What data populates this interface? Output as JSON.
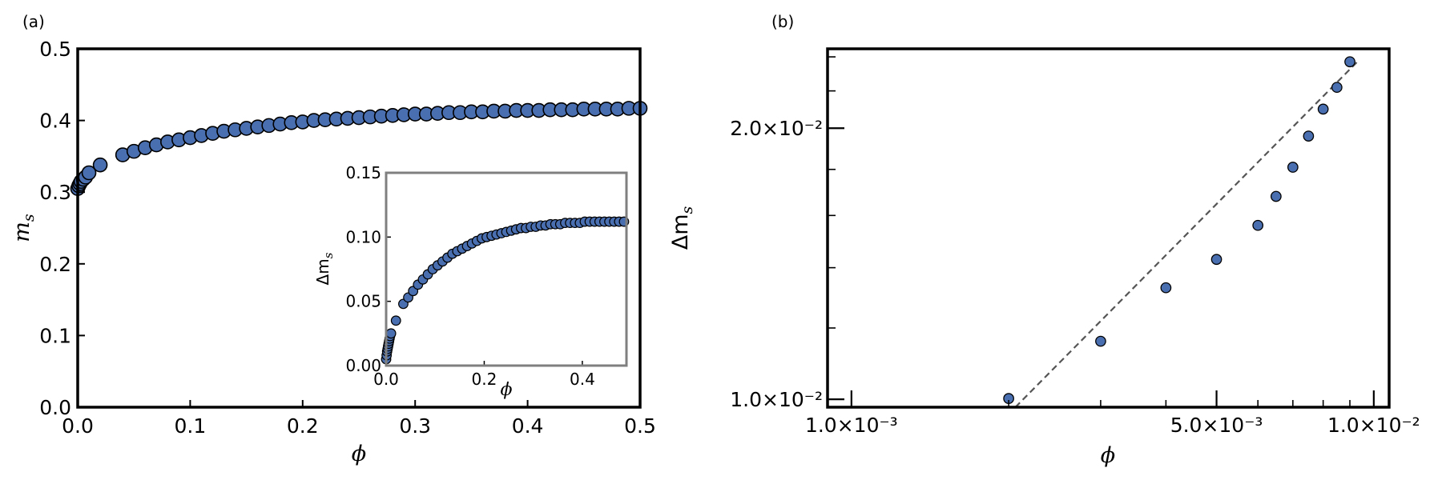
{
  "style": {
    "marker_fill": "#4a6fb0",
    "marker_edge": "#000000",
    "fit_line": "#555555",
    "inset_frame": "#7f7f7f"
  },
  "panel_a": {
    "label": "(a)",
    "xlabel": "ϕ",
    "ylabel": "m",
    "ylabel_sub": "s"
  },
  "panel_b": {
    "label": "(b)",
    "xlabel": "ϕ",
    "ylabel": "Δm",
    "ylabel_sub": "s"
  },
  "chart_data": [
    {
      "id": "main",
      "type": "scatter",
      "title": "",
      "xlabel": "ϕ",
      "ylabel": "m_s",
      "xlim": [
        0.0,
        0.5
      ],
      "ylim": [
        0.0,
        0.5
      ],
      "xticks": [
        0.0,
        0.1,
        0.2,
        0.3,
        0.4,
        0.5
      ],
      "xtick_labels": [
        "0.0",
        "0.1",
        "0.2",
        "0.3",
        "0.4",
        "0.5"
      ],
      "yticks": [
        0.0,
        0.1,
        0.2,
        0.3,
        0.4,
        0.5
      ],
      "ytick_labels": [
        "0.0",
        "0.1",
        "0.2",
        "0.3",
        "0.4",
        "0.5"
      ],
      "series": [
        {
          "name": "m_s",
          "x": [
            0.0,
            0.001,
            0.002,
            0.003,
            0.005,
            0.007,
            0.01,
            0.02,
            0.04,
            0.05,
            0.06,
            0.07,
            0.08,
            0.09,
            0.1,
            0.11,
            0.12,
            0.13,
            0.14,
            0.15,
            0.16,
            0.17,
            0.18,
            0.19,
            0.2,
            0.21,
            0.22,
            0.23,
            0.24,
            0.25,
            0.26,
            0.27,
            0.28,
            0.29,
            0.3,
            0.31,
            0.32,
            0.33,
            0.34,
            0.35,
            0.36,
            0.37,
            0.38,
            0.39,
            0.4,
            0.41,
            0.42,
            0.43,
            0.44,
            0.45,
            0.46,
            0.47,
            0.48,
            0.49,
            0.5
          ],
          "y": [
            0.305,
            0.309,
            0.312,
            0.315,
            0.318,
            0.321,
            0.327,
            0.338,
            0.352,
            0.357,
            0.362,
            0.366,
            0.37,
            0.373,
            0.376,
            0.379,
            0.382,
            0.385,
            0.387,
            0.389,
            0.391,
            0.393,
            0.395,
            0.397,
            0.398,
            0.4,
            0.401,
            0.402,
            0.403,
            0.404,
            0.405,
            0.406,
            0.407,
            0.408,
            0.409,
            0.409,
            0.41,
            0.411,
            0.411,
            0.412,
            0.412,
            0.413,
            0.413,
            0.414,
            0.414,
            0.414,
            0.415,
            0.415,
            0.415,
            0.416,
            0.416,
            0.416,
            0.416,
            0.417,
            0.417
          ]
        }
      ]
    },
    {
      "id": "inset",
      "type": "scatter",
      "title": "",
      "xlabel": "ϕ",
      "ylabel": "Δm_s",
      "xlim": [
        0.0,
        0.49
      ],
      "ylim": [
        0.0,
        0.15
      ],
      "xticks": [
        0.0,
        0.2,
        0.4
      ],
      "xtick_labels": [
        "0.0",
        "0.2",
        "0.4"
      ],
      "yticks": [
        0.0,
        0.05,
        0.1,
        0.15
      ],
      "ytick_labels": [
        "0.00",
        "0.05",
        "0.10",
        "0.15"
      ],
      "series": [
        {
          "name": "Δm_s",
          "x": [
            0.0,
            0.001,
            0.002,
            0.003,
            0.004,
            0.005,
            0.006,
            0.007,
            0.008,
            0.01,
            0.02,
            0.035,
            0.045,
            0.055,
            0.065,
            0.075,
            0.085,
            0.095,
            0.105,
            0.115,
            0.125,
            0.135,
            0.145,
            0.155,
            0.165,
            0.175,
            0.185,
            0.195,
            0.205,
            0.215,
            0.225,
            0.235,
            0.245,
            0.255,
            0.265,
            0.275,
            0.285,
            0.295,
            0.305,
            0.315,
            0.325,
            0.335,
            0.345,
            0.355,
            0.365,
            0.375,
            0.385,
            0.395,
            0.405,
            0.415,
            0.425,
            0.435,
            0.445,
            0.455,
            0.465,
            0.475,
            0.485
          ],
          "y": [
            0.005,
            0.008,
            0.011,
            0.013,
            0.015,
            0.017,
            0.019,
            0.021,
            0.023,
            0.025,
            0.035,
            0.048,
            0.053,
            0.058,
            0.063,
            0.067,
            0.071,
            0.075,
            0.078,
            0.081,
            0.084,
            0.087,
            0.089,
            0.091,
            0.093,
            0.095,
            0.097,
            0.099,
            0.1,
            0.101,
            0.102,
            0.103,
            0.104,
            0.105,
            0.106,
            0.107,
            0.107,
            0.108,
            0.108,
            0.109,
            0.109,
            0.11,
            0.11,
            0.11,
            0.111,
            0.111,
            0.111,
            0.111,
            0.112,
            0.112,
            0.112,
            0.112,
            0.112,
            0.112,
            0.112,
            0.112,
            0.112
          ]
        }
      ]
    },
    {
      "id": "loglog",
      "type": "scatter",
      "title": "",
      "xlabel": "ϕ",
      "ylabel": "Δm_s",
      "xscale": "log",
      "yscale": "log",
      "xlim": [
        0.0009,
        0.0107
      ],
      "ylim": [
        0.0098,
        0.0245
      ],
      "xticks": [
        0.001,
        0.005,
        0.01
      ],
      "xtick_labels": [
        "1.0×10⁻³",
        "5.0×10⁻³",
        "1.0×10⁻²"
      ],
      "yticks": [
        0.01,
        0.02
      ],
      "ytick_labels": [
        "1.0×10⁻²",
        "2.0×10⁻²"
      ],
      "series": [
        {
          "name": "Δm_s",
          "x": [
            0.002,
            0.003,
            0.004,
            0.005,
            0.006,
            0.0065,
            0.007,
            0.0075,
            0.008,
            0.0085,
            0.009
          ],
          "y": [
            0.01002,
            0.0116,
            0.0133,
            0.0143,
            0.0156,
            0.0168,
            0.0181,
            0.0196,
            0.021,
            0.0222,
            0.0237
          ]
        },
        {
          "name": "power-law fit",
          "style": "dashed",
          "x": [
            0.00206,
            0.0093
          ],
          "y": [
            0.0098,
            0.0237
          ]
        }
      ]
    }
  ]
}
